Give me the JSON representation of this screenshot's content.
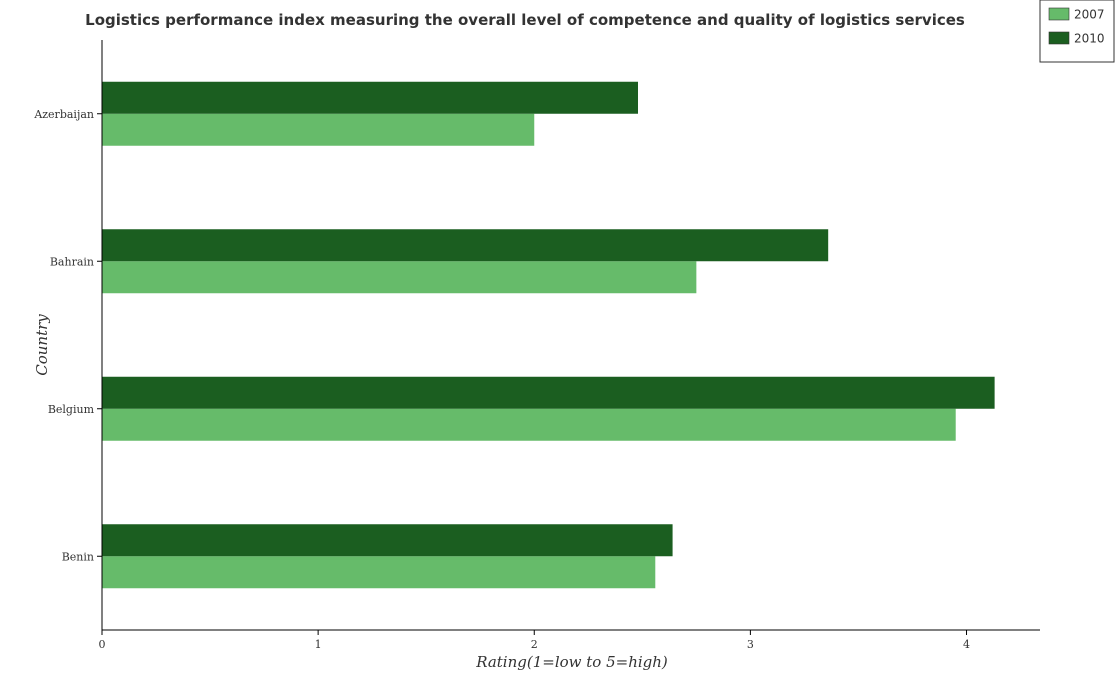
{
  "chart_data": {
    "type": "bar",
    "orientation": "horizontal",
    "title": "Logistics performance index measuring the overall level of competence and quality of logistics services",
    "xlabel": "Rating(1=low to 5=high)",
    "ylabel": "Country",
    "categories": [
      "Azerbaijan",
      "Bahrain",
      "Belgium",
      "Benin"
    ],
    "series": [
      {
        "name": "2007",
        "color": "#66bb6a",
        "values": [
          2.0,
          2.75,
          3.95,
          2.56
        ]
      },
      {
        "name": "2010",
        "color": "#1b5e20",
        "values": [
          2.48,
          3.36,
          4.13,
          2.64
        ]
      }
    ],
    "xlim": [
      0,
      4.34
    ],
    "xticks": [
      0,
      1,
      2,
      3,
      4
    ],
    "xtick_labels": [
      "0",
      "1",
      "2",
      "3",
      "4"
    ],
    "grid": false,
    "legend_position": "top-right"
  }
}
